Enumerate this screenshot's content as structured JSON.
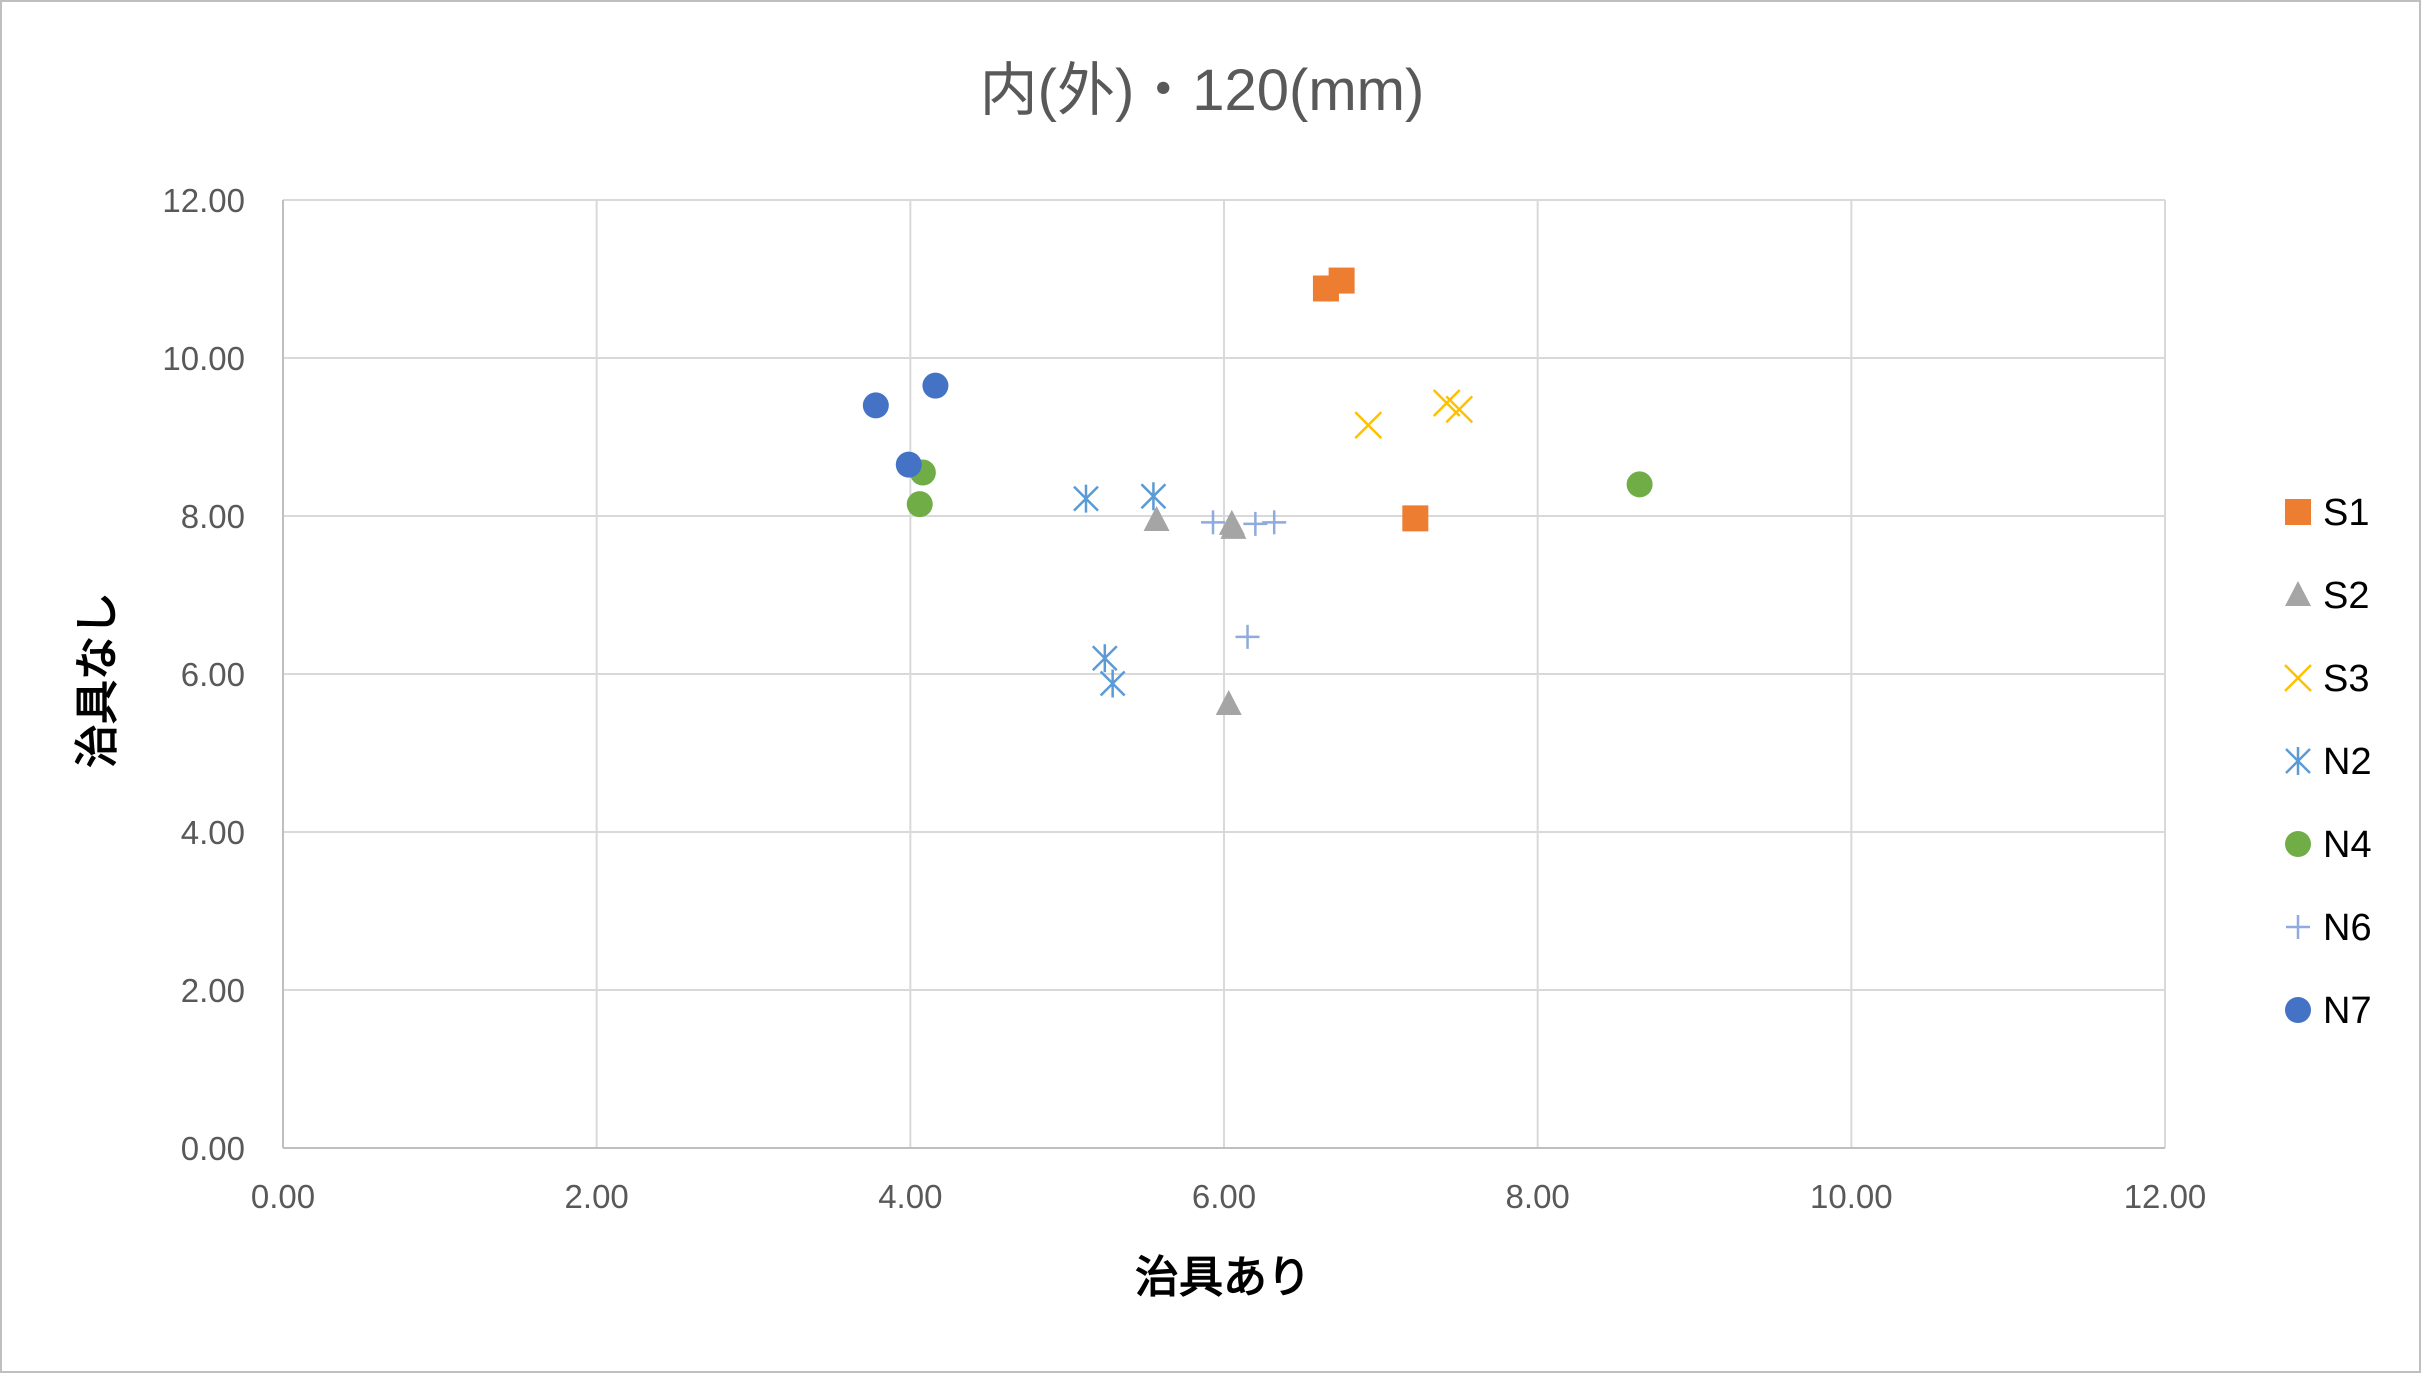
{
  "chart_data": {
    "type": "scatter",
    "title": "内(外)・120(mm)",
    "xlabel": "治具あり",
    "ylabel": "治具なし",
    "xlim": [
      0,
      12
    ],
    "ylim": [
      0,
      12
    ],
    "x_ticks": [
      "0.00",
      "2.00",
      "4.00",
      "6.00",
      "8.00",
      "10.00",
      "12.00"
    ],
    "y_ticks": [
      "0.00",
      "2.00",
      "4.00",
      "6.00",
      "8.00",
      "10.00",
      "12.00"
    ],
    "grid": true,
    "legend_position": "right",
    "series": [
      {
        "name": "S1",
        "marker": "square",
        "color": "#ED7D31",
        "points": [
          [
            6.65,
            10.88
          ],
          [
            6.75,
            10.98
          ],
          [
            7.22,
            7.97
          ]
        ]
      },
      {
        "name": "S2",
        "marker": "triangle",
        "color": "#A5A5A5",
        "points": [
          [
            5.57,
            7.95
          ],
          [
            6.05,
            7.9
          ],
          [
            6.06,
            7.85
          ],
          [
            6.03,
            5.62
          ]
        ]
      },
      {
        "name": "S3",
        "marker": "x",
        "color": "#FFC000",
        "points": [
          [
            6.92,
            9.15
          ],
          [
            7.42,
            9.43
          ],
          [
            7.5,
            9.35
          ]
        ]
      },
      {
        "name": "N2",
        "marker": "asterisk",
        "color": "#5B9BD5",
        "points": [
          [
            5.12,
            8.22
          ],
          [
            5.55,
            8.25
          ],
          [
            5.24,
            6.2
          ],
          [
            5.29,
            5.88
          ]
        ]
      },
      {
        "name": "N4",
        "marker": "circle",
        "color": "#70AD47",
        "points": [
          [
            4.08,
            8.55
          ],
          [
            4.06,
            8.15
          ],
          [
            8.65,
            8.4
          ]
        ]
      },
      {
        "name": "N6",
        "marker": "plus",
        "color": "#8FAADC",
        "points": [
          [
            5.93,
            7.92
          ],
          [
            6.2,
            7.9
          ],
          [
            6.32,
            7.92
          ],
          [
            6.15,
            6.47
          ]
        ]
      },
      {
        "name": "N7",
        "marker": "circle",
        "color": "#4472C4",
        "points": [
          [
            3.78,
            9.4
          ],
          [
            4.16,
            9.65
          ],
          [
            3.99,
            8.65
          ]
        ]
      }
    ]
  }
}
